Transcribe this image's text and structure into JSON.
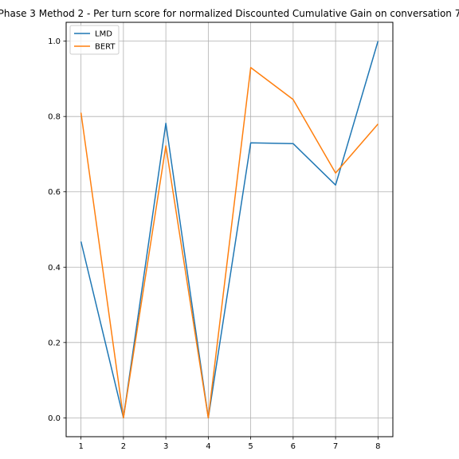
{
  "chart_data": {
    "type": "line",
    "title": "Phase 3 Method 2 - Per turn score for normalized Discounted Cumulative Gain on conversation 7",
    "xlabel": "",
    "ylabel": "",
    "x": [
      1,
      2,
      3,
      4,
      5,
      6,
      7,
      8
    ],
    "x_ticks": [
      "1",
      "2",
      "3",
      "4",
      "5",
      "6",
      "7",
      "8"
    ],
    "y_ticks": [
      "0.0",
      "0.2",
      "0.4",
      "0.6",
      "0.8",
      "1.0"
    ],
    "xlim": [
      0.65,
      8.35
    ],
    "ylim": [
      -0.05,
      1.05
    ],
    "grid": true,
    "legend_position": "top-left",
    "series": [
      {
        "name": "LMD",
        "color": "#1f77b4",
        "values": [
          0.468,
          0.0,
          0.782,
          0.0,
          0.73,
          0.728,
          0.618,
          1.0
        ]
      },
      {
        "name": "BERT",
        "color": "#ff7f0e",
        "values": [
          0.81,
          0.0,
          0.722,
          0.0,
          0.93,
          0.845,
          0.65,
          0.78
        ]
      }
    ]
  }
}
